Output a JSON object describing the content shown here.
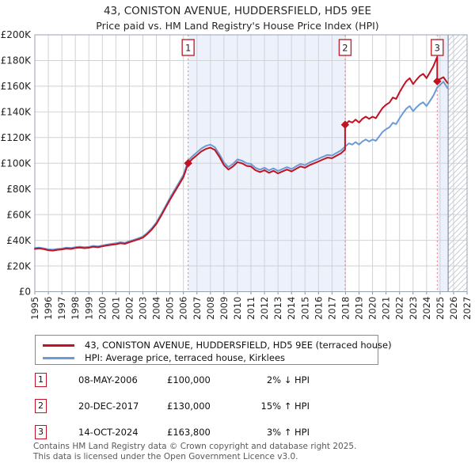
{
  "title": "43, CONISTON AVENUE, HUDDERSFIELD, HD5 9EE",
  "subtitle": "Price paid vs. HM Land Registry's House Price Index (HPI)",
  "legend": {
    "series": [
      {
        "label": "43, CONISTON AVENUE, HUDDERSFIELD, HD5 9EE (terraced house)",
        "color": "#c01222"
      },
      {
        "label": "HPI: Average price, terraced house, Kirklees",
        "color": "#6b9bd2"
      }
    ]
  },
  "transactions": [
    {
      "num": "1",
      "date": "08-MAY-2006",
      "price": "£100,000",
      "hpi": "2% ↓ HPI",
      "year": 2006.35,
      "price_k": 100.0
    },
    {
      "num": "2",
      "date": "20-DEC-2017",
      "price": "£130,000",
      "hpi": "15% ↑ HPI",
      "year": 2017.97,
      "price_k": 130.0
    },
    {
      "num": "3",
      "date": "14-OCT-2024",
      "price": "£163,800",
      "hpi": "3% ↑ HPI",
      "year": 2024.79,
      "price_k": 163.8
    }
  ],
  "footer": {
    "line1": "Contains HM Land Registry data © Crown copyright and database right 2025.",
    "line2": "This data is licensed under the Open Government Licence v3.0."
  },
  "chart_data": {
    "type": "line",
    "title": "43, CONISTON AVENUE, HUDDERSFIELD, HD5 9EE",
    "subtitle": "Price paid vs. HM Land Registry's House Price Index (HPI)",
    "xlabel": "",
    "ylabel": "",
    "grid": true,
    "legend_position": "below",
    "xlim": [
      1995,
      2027
    ],
    "ylim": [
      0,
      200000
    ],
    "y_unit_k": true,
    "ylim_k": [
      0,
      200
    ],
    "y_ticks": [
      "£0",
      "£20K",
      "£40K",
      "£60K",
      "£80K",
      "£100K",
      "£120K",
      "£140K",
      "£160K",
      "£180K",
      "£200K"
    ],
    "x_ticks": [
      "1995",
      "1996",
      "1997",
      "1998",
      "1999",
      "2000",
      "2001",
      "2002",
      "2003",
      "2004",
      "2005",
      "2006",
      "2007",
      "2008",
      "2009",
      "2010",
      "2011",
      "2012",
      "2013",
      "2014",
      "2015",
      "2016",
      "2017",
      "2018",
      "2019",
      "2020",
      "2021",
      "2022",
      "2023",
      "2024",
      "2025",
      "2026",
      "2027"
    ],
    "colors": {
      "price_line": "#c01222",
      "hpi_line": "#6b9bd2",
      "sale_dashed_line": "#ee7b7b",
      "ownership_band": "#edf1fb",
      "grid_line": "#d0d2d6",
      "frame": "#9aa3b0",
      "hatch_line": "#c4cad4",
      "data_end_line": "#8795a8"
    },
    "ownership_bands": [
      [
        2006.35,
        2017.97
      ],
      [
        2024.79,
        2025.6
      ]
    ],
    "future_hatch_start": 2025.6,
    "sale_flags": [
      {
        "num": "1",
        "year": 2006.35,
        "price_k": 100.0
      },
      {
        "num": "2",
        "year": 2017.97,
        "price_k": 130.0
      },
      {
        "num": "3",
        "year": 2024.79,
        "price_k": 163.8
      }
    ],
    "series": [
      {
        "name": "hpi",
        "label": "HPI: Average price, terraced house, Kirklees",
        "color": "#6b9bd2",
        "points": [
          [
            1995.0,
            34.0
          ],
          [
            1995.33,
            34.4
          ],
          [
            1995.67,
            33.8
          ],
          [
            1996.0,
            33.0
          ],
          [
            1996.33,
            32.7
          ],
          [
            1996.67,
            33.3
          ],
          [
            1997.0,
            33.6
          ],
          [
            1997.33,
            34.3
          ],
          [
            1997.67,
            34.0
          ],
          [
            1998.0,
            34.7
          ],
          [
            1998.33,
            35.1
          ],
          [
            1998.67,
            34.6
          ],
          [
            1999.0,
            34.9
          ],
          [
            1999.33,
            35.7
          ],
          [
            1999.67,
            35.3
          ],
          [
            2000.0,
            36.0
          ],
          [
            2000.33,
            36.7
          ],
          [
            2000.67,
            37.2
          ],
          [
            2001.0,
            37.7
          ],
          [
            2001.33,
            38.5
          ],
          [
            2001.67,
            38.1
          ],
          [
            2002.0,
            39.3
          ],
          [
            2002.33,
            40.4
          ],
          [
            2002.67,
            41.6
          ],
          [
            2003.0,
            43.0
          ],
          [
            2003.33,
            45.8
          ],
          [
            2003.67,
            49.5
          ],
          [
            2004.0,
            54.0
          ],
          [
            2004.33,
            60.0
          ],
          [
            2004.67,
            66.5
          ],
          [
            2005.0,
            73.0
          ],
          [
            2005.33,
            79.0
          ],
          [
            2005.67,
            85.0
          ],
          [
            2006.0,
            91.0
          ],
          [
            2006.35,
            102.0
          ],
          [
            2006.67,
            105.5
          ],
          [
            2007.0,
            108.5
          ],
          [
            2007.33,
            111.5
          ],
          [
            2007.67,
            113.5
          ],
          [
            2008.0,
            114.5
          ],
          [
            2008.33,
            112.5
          ],
          [
            2008.67,
            107.0
          ],
          [
            2009.0,
            100.5
          ],
          [
            2009.33,
            97.0
          ],
          [
            2009.67,
            99.5
          ],
          [
            2010.0,
            103.0
          ],
          [
            2010.33,
            102.0
          ],
          [
            2010.67,
            100.0
          ],
          [
            2011.0,
            99.5
          ],
          [
            2011.33,
            96.5
          ],
          [
            2011.67,
            95.0
          ],
          [
            2012.0,
            96.5
          ],
          [
            2012.33,
            94.5
          ],
          [
            2012.67,
            96.0
          ],
          [
            2013.0,
            94.0
          ],
          [
            2013.33,
            95.5
          ],
          [
            2013.67,
            97.0
          ],
          [
            2014.0,
            95.5
          ],
          [
            2014.33,
            97.5
          ],
          [
            2014.67,
            99.5
          ],
          [
            2015.0,
            98.5
          ],
          [
            2015.33,
            100.5
          ],
          [
            2015.67,
            102.0
          ],
          [
            2016.0,
            103.5
          ],
          [
            2016.33,
            105.0
          ],
          [
            2016.67,
            106.5
          ],
          [
            2017.0,
            106.0
          ],
          [
            2017.33,
            108.0
          ],
          [
            2017.67,
            110.0
          ],
          [
            2017.97,
            113.0
          ],
          [
            2018.25,
            115.5
          ],
          [
            2018.5,
            114.5
          ],
          [
            2018.75,
            116.5
          ],
          [
            2019.0,
            114.5
          ],
          [
            2019.25,
            117.0
          ],
          [
            2019.5,
            118.5
          ],
          [
            2019.75,
            117.0
          ],
          [
            2020.0,
            118.5
          ],
          [
            2020.25,
            117.5
          ],
          [
            2020.5,
            121.0
          ],
          [
            2020.75,
            124.5
          ],
          [
            2021.0,
            126.5
          ],
          [
            2021.25,
            128.0
          ],
          [
            2021.5,
            131.5
          ],
          [
            2021.75,
            130.5
          ],
          [
            2022.0,
            135.0
          ],
          [
            2022.25,
            139.0
          ],
          [
            2022.5,
            142.5
          ],
          [
            2022.75,
            144.5
          ],
          [
            2023.0,
            140.5
          ],
          [
            2023.25,
            143.5
          ],
          [
            2023.5,
            146.0
          ],
          [
            2023.75,
            147.5
          ],
          [
            2024.0,
            144.5
          ],
          [
            2024.25,
            148.5
          ],
          [
            2024.5,
            152.5
          ],
          [
            2024.79,
            159.0
          ],
          [
            2025.0,
            161.0
          ],
          [
            2025.25,
            163.5
          ],
          [
            2025.55,
            158.5
          ]
        ]
      },
      {
        "name": "price_paid",
        "label": "43, CONISTON AVENUE, HUDDERSFIELD, HD5 9EE (terraced house)",
        "color": "#c01222",
        "points": [
          [
            1995.0,
            33.3
          ],
          [
            1995.33,
            33.7
          ],
          [
            1995.67,
            33.1
          ],
          [
            1996.0,
            32.3
          ],
          [
            1996.33,
            32.0
          ],
          [
            1996.67,
            32.6
          ],
          [
            1997.0,
            32.9
          ],
          [
            1997.33,
            33.6
          ],
          [
            1997.67,
            33.3
          ],
          [
            1998.0,
            34.0
          ],
          [
            1998.33,
            34.4
          ],
          [
            1998.67,
            33.9
          ],
          [
            1999.0,
            34.2
          ],
          [
            1999.33,
            35.0
          ],
          [
            1999.67,
            34.6
          ],
          [
            2000.0,
            35.3
          ],
          [
            2000.33,
            36.0
          ],
          [
            2000.67,
            36.5
          ],
          [
            2001.0,
            36.9
          ],
          [
            2001.33,
            37.7
          ],
          [
            2001.67,
            37.3
          ],
          [
            2002.0,
            38.5
          ],
          [
            2002.33,
            39.6
          ],
          [
            2002.67,
            40.8
          ],
          [
            2003.0,
            42.1
          ],
          [
            2003.33,
            44.9
          ],
          [
            2003.67,
            48.5
          ],
          [
            2004.0,
            52.9
          ],
          [
            2004.33,
            58.8
          ],
          [
            2004.67,
            65.2
          ],
          [
            2005.0,
            71.5
          ],
          [
            2005.33,
            77.4
          ],
          [
            2005.67,
            83.3
          ],
          [
            2006.0,
            89.2
          ],
          [
            2006.35,
            100.0
          ],
          [
            2006.67,
            103.4
          ],
          [
            2007.0,
            106.3
          ],
          [
            2007.33,
            109.3
          ],
          [
            2007.67,
            111.2
          ],
          [
            2008.0,
            112.2
          ],
          [
            2008.33,
            110.3
          ],
          [
            2008.67,
            104.9
          ],
          [
            2009.0,
            98.5
          ],
          [
            2009.33,
            95.1
          ],
          [
            2009.67,
            97.5
          ],
          [
            2010.0,
            100.9
          ],
          [
            2010.33,
            100.0
          ],
          [
            2010.67,
            98.0
          ],
          [
            2011.0,
            97.5
          ],
          [
            2011.33,
            94.6
          ],
          [
            2011.67,
            93.1
          ],
          [
            2012.0,
            94.6
          ],
          [
            2012.33,
            92.6
          ],
          [
            2012.67,
            94.1
          ],
          [
            2013.0,
            92.1
          ],
          [
            2013.33,
            93.6
          ],
          [
            2013.67,
            95.1
          ],
          [
            2014.0,
            93.6
          ],
          [
            2014.33,
            95.6
          ],
          [
            2014.67,
            97.5
          ],
          [
            2015.0,
            96.5
          ],
          [
            2015.33,
            98.5
          ],
          [
            2015.67,
            100.0
          ],
          [
            2016.0,
            101.4
          ],
          [
            2016.33,
            102.9
          ],
          [
            2016.67,
            104.4
          ],
          [
            2017.0,
            103.9
          ],
          [
            2017.33,
            105.8
          ],
          [
            2017.67,
            107.8
          ],
          [
            2017.97,
            110.7
          ],
          [
            2017.97,
            130.0
          ],
          [
            2018.25,
            132.8
          ],
          [
            2018.5,
            131.7
          ],
          [
            2018.75,
            134.0
          ],
          [
            2019.0,
            131.7
          ],
          [
            2019.25,
            134.6
          ],
          [
            2019.5,
            136.3
          ],
          [
            2019.75,
            134.6
          ],
          [
            2020.0,
            136.3
          ],
          [
            2020.25,
            135.1
          ],
          [
            2020.5,
            139.2
          ],
          [
            2020.75,
            143.2
          ],
          [
            2021.0,
            145.5
          ],
          [
            2021.25,
            147.2
          ],
          [
            2021.5,
            151.2
          ],
          [
            2021.75,
            150.1
          ],
          [
            2022.0,
            155.3
          ],
          [
            2022.25,
            159.9
          ],
          [
            2022.5,
            163.9
          ],
          [
            2022.75,
            166.2
          ],
          [
            2023.0,
            161.6
          ],
          [
            2023.25,
            165.0
          ],
          [
            2023.5,
            167.9
          ],
          [
            2023.75,
            169.6
          ],
          [
            2024.0,
            166.2
          ],
          [
            2024.25,
            170.8
          ],
          [
            2024.5,
            175.4
          ],
          [
            2024.79,
            182.9
          ],
          [
            2024.79,
            163.8
          ],
          [
            2025.0,
            165.6
          ],
          [
            2025.25,
            167.0
          ],
          [
            2025.55,
            162.5
          ]
        ]
      }
    ]
  }
}
